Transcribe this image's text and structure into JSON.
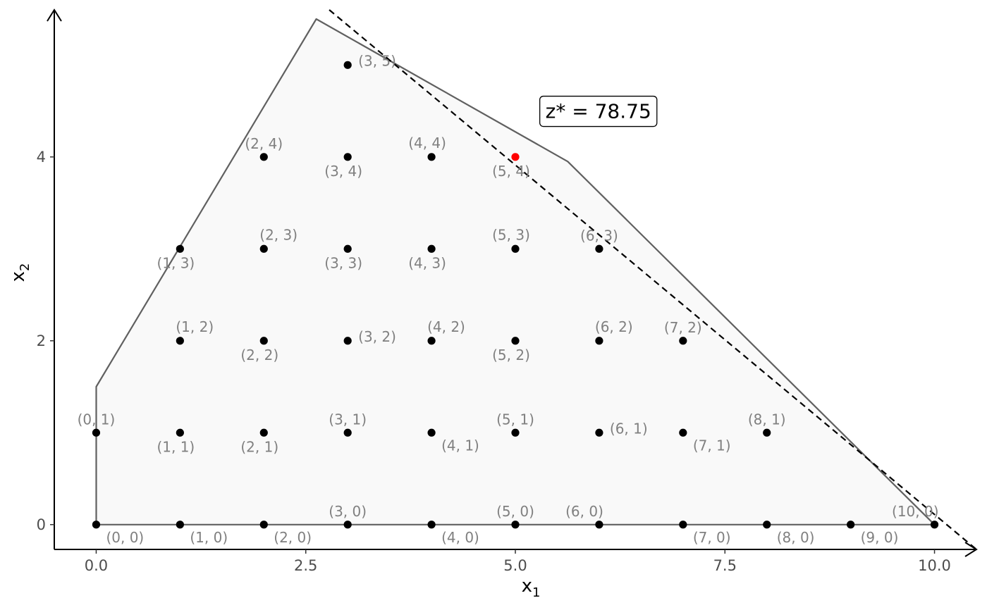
{
  "chart_data": {
    "type": "scatter",
    "title": "",
    "xlabel": {
      "main": "x",
      "sub": "1"
    },
    "ylabel": {
      "main": "x",
      "sub": "2"
    },
    "xlim": [
      -0.5,
      10.5
    ],
    "ylim": [
      -0.27,
      5.6
    ],
    "x_ticks": [
      0.0,
      2.5,
      5.0,
      7.5,
      10.0
    ],
    "x_tick_labels": [
      "0.0",
      "2.5",
      "5.0",
      "7.5",
      "10.0"
    ],
    "y_ticks": [
      0,
      2,
      4
    ],
    "y_tick_labels": [
      "0",
      "2",
      "4"
    ],
    "grid": false,
    "feasible_region": [
      [
        0,
        0
      ],
      [
        0,
        1.5
      ],
      [
        2.625,
        5.5
      ],
      [
        5.625,
        3.95
      ],
      [
        10,
        0
      ]
    ],
    "objective_line": [
      [
        2.78,
        5.6
      ],
      [
        10.5,
        -0.27
      ]
    ],
    "points": [
      {
        "x": 0,
        "y": 0,
        "label": "(0, 0)",
        "pos": "br"
      },
      {
        "x": 1,
        "y": 0,
        "label": "(1, 0)",
        "pos": "br"
      },
      {
        "x": 2,
        "y": 0,
        "label": "(2, 0)",
        "pos": "br"
      },
      {
        "x": 3,
        "y": 0,
        "label": "(3, 0)",
        "pos": "t"
      },
      {
        "x": 4,
        "y": 0,
        "label": "(4, 0)",
        "pos": "br"
      },
      {
        "x": 5,
        "y": 0,
        "label": "(5, 0)",
        "pos": "t"
      },
      {
        "x": 6,
        "y": 0,
        "label": "(6, 0)",
        "pos": "tl"
      },
      {
        "x": 7,
        "y": 0,
        "label": "(7, 0)",
        "pos": "br"
      },
      {
        "x": 8,
        "y": 0,
        "label": "(8, 0)",
        "pos": "br"
      },
      {
        "x": 9,
        "y": 0,
        "label": "(9, 0)",
        "pos": "br"
      },
      {
        "x": 10,
        "y": 0,
        "label": "(10, 0)",
        "pos": "tl"
      },
      {
        "x": 0,
        "y": 1,
        "label": "(0, 1)",
        "pos": "t"
      },
      {
        "x": 1,
        "y": 1,
        "label": "(1, 1)",
        "pos": "bl"
      },
      {
        "x": 2,
        "y": 1,
        "label": "(2, 1)",
        "pos": "bl"
      },
      {
        "x": 3,
        "y": 1,
        "label": "(3, 1)",
        "pos": "t"
      },
      {
        "x": 4,
        "y": 1,
        "label": "(4, 1)",
        "pos": "br"
      },
      {
        "x": 5,
        "y": 1,
        "label": "(5, 1)",
        "pos": "t"
      },
      {
        "x": 6,
        "y": 1,
        "label": "(6, 1)",
        "pos": "r"
      },
      {
        "x": 7,
        "y": 1,
        "label": "(7, 1)",
        "pos": "br"
      },
      {
        "x": 8,
        "y": 1,
        "label": "(8, 1)",
        "pos": "t"
      },
      {
        "x": 1,
        "y": 2,
        "label": "(1, 2)",
        "pos": "tr"
      },
      {
        "x": 2,
        "y": 2,
        "label": "(2, 2)",
        "pos": "bl"
      },
      {
        "x": 3,
        "y": 2,
        "label": "(3, 2)",
        "pos": "r"
      },
      {
        "x": 4,
        "y": 2,
        "label": "(4, 2)",
        "pos": "tr"
      },
      {
        "x": 5,
        "y": 2,
        "label": "(5, 2)",
        "pos": "bl"
      },
      {
        "x": 6,
        "y": 2,
        "label": "(6, 2)",
        "pos": "tr"
      },
      {
        "x": 7,
        "y": 2,
        "label": "(7, 2)",
        "pos": "t"
      },
      {
        "x": 1,
        "y": 3,
        "label": "(1, 3)",
        "pos": "bl"
      },
      {
        "x": 2,
        "y": 3,
        "label": "(2, 3)",
        "pos": "tr"
      },
      {
        "x": 3,
        "y": 3,
        "label": "(3, 3)",
        "pos": "bl"
      },
      {
        "x": 4,
        "y": 3,
        "label": "(4, 3)",
        "pos": "bl"
      },
      {
        "x": 5,
        "y": 3,
        "label": "(5, 3)",
        "pos": "bl_up"
      },
      {
        "x": 6,
        "y": 3,
        "label": "(6, 3)",
        "pos": "t"
      },
      {
        "x": 2,
        "y": 4,
        "label": "(2, 4)",
        "pos": "t"
      },
      {
        "x": 3,
        "y": 4,
        "label": "(3, 4)",
        "pos": "bl"
      },
      {
        "x": 4,
        "y": 4,
        "label": "(4, 4)",
        "pos": "bl_up"
      },
      {
        "x": 5,
        "y": 4,
        "label": "(5, 4)",
        "pos": "bl",
        "optimal": true
      },
      {
        "x": 3,
        "y": 5,
        "label": "(3, 5)",
        "pos": "r"
      }
    ],
    "annotation": {
      "text": "z* = 78.75",
      "x": 5.99,
      "y": 4.5
    },
    "colors": {
      "point": "#000000",
      "optimal_point": "#ff0000",
      "region_fill": "#f9f9f9",
      "region_stroke": "#606060",
      "point_label": "#808080",
      "tick_label": "#4d4d4d",
      "axis": "#000000"
    }
  }
}
